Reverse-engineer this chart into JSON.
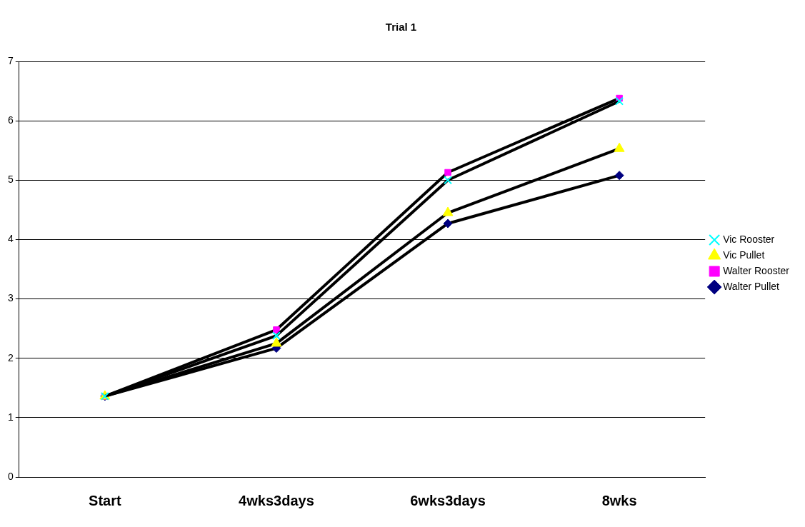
{
  "chart_data": {
    "type": "line",
    "title": "Trial 1",
    "categories": [
      "Start",
      "4wks3days",
      "6wks3days",
      "8wks"
    ],
    "series": [
      {
        "name": "Walter Pullet",
        "color": "#000080",
        "marker": "diamond",
        "values": [
          1.36,
          2.17,
          4.27,
          5.08
        ]
      },
      {
        "name": "Walter Rooster",
        "color": "#ff00ff",
        "marker": "square",
        "values": [
          1.36,
          2.48,
          5.13,
          6.38
        ]
      },
      {
        "name": "Vic Pullet",
        "color": "#ffff00",
        "marker": "triangle",
        "values": [
          1.36,
          2.25,
          4.45,
          5.53
        ]
      },
      {
        "name": "Vic Rooster",
        "color": "#00ffff",
        "marker": "cross",
        "values": [
          1.36,
          2.38,
          5.0,
          6.33
        ]
      }
    ],
    "ylim": [
      0,
      7
    ],
    "yticks": [
      0,
      1,
      2,
      3,
      4,
      5,
      6,
      7
    ],
    "grid": "y",
    "legend": "right"
  }
}
